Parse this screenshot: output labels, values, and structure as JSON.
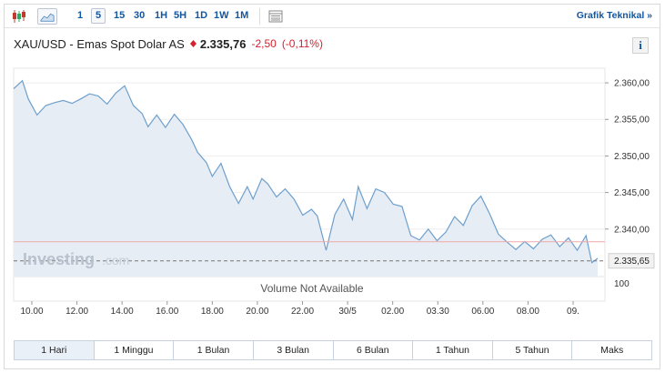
{
  "toolbar": {
    "candle_icon": "candlestick-icon",
    "area_icon": "area-chart-icon",
    "timeframes": [
      "1",
      "5",
      "15",
      "30",
      "1H",
      "5H",
      "1D",
      "1W",
      "1M"
    ],
    "active_timeframe": "5",
    "table_icon": "table-icon",
    "technical_link": "Grafik Teknikal »"
  },
  "header": {
    "instrument": "XAU/USD - Emas Spot Dolar AS",
    "price": "2.335,76",
    "change": "-2,50",
    "change_pct": "(-0,11%)",
    "info_label": "i"
  },
  "colors": {
    "accent": "#1256a0",
    "negative": "#d3212d",
    "area_fill": "#e6edf5",
    "line": "#6e9fcc",
    "ref_line": "#f2a7a7"
  },
  "chart_data": {
    "type": "area",
    "x_ticks": [
      "10.00",
      "12.00",
      "14.00",
      "16.00",
      "18.00",
      "20.00",
      "22.00",
      "30/5",
      "02.00",
      "03.30",
      "06.00",
      "08.00",
      "09."
    ],
    "y_ticks": [
      "2.360,00",
      "2.355,00",
      "2.350,00",
      "2.345,00",
      "2.340,00"
    ],
    "volume_axis_label": "100",
    "ylim": [
      2333.5,
      2362.0
    ],
    "reference_line": 2338.26,
    "last_value_label": "2.335,65",
    "last_value": 2335.65,
    "watermark": "Investing",
    "watermark_suffix": ".com",
    "volume_note": "Volume Not Available",
    "x": [
      0,
      1.5,
      2.5,
      4,
      5.5,
      7,
      8.5,
      10,
      11.5,
      13,
      14.5,
      16,
      17.5,
      19,
      20.5,
      22,
      23,
      24.5,
      26,
      27.5,
      29,
      30.5,
      31.5,
      33,
      34,
      35.5,
      37,
      38.5,
      40,
      41,
      42.5,
      43.5,
      45,
      46.5,
      48,
      49.5,
      51,
      52,
      53.5,
      55,
      56.5,
      58,
      59,
      60.5,
      62,
      63.5,
      65,
      66.5,
      68,
      69.5,
      71,
      72.5,
      74,
      75.5,
      77,
      78.5,
      80,
      81.5,
      83,
      84.5,
      86,
      87.5,
      89,
      90.5,
      92,
      93.5,
      95,
      96.5,
      98,
      99,
      100
    ],
    "y": [
      2359.2,
      2360.3,
      2357.8,
      2355.6,
      2356.9,
      2357.3,
      2357.6,
      2357.2,
      2357.8,
      2358.5,
      2358.2,
      2357.1,
      2358.6,
      2359.6,
      2356.9,
      2355.8,
      2354.0,
      2355.6,
      2353.9,
      2355.7,
      2354.3,
      2352.2,
      2350.5,
      2349.1,
      2347.2,
      2349.0,
      2345.8,
      2343.5,
      2345.8,
      2344.1,
      2346.9,
      2346.2,
      2344.4,
      2345.5,
      2344.1,
      2341.9,
      2342.7,
      2341.8,
      2337.1,
      2342.0,
      2344.1,
      2341.3,
      2345.8,
      2342.8,
      2345.5,
      2345.0,
      2343.4,
      2343.1,
      2339.1,
      2338.5,
      2340.0,
      2338.4,
      2339.6,
      2341.7,
      2340.5,
      2343.2,
      2344.5,
      2342.1,
      2339.3,
      2338.2,
      2337.2,
      2338.3,
      2337.3,
      2338.6,
      2339.2,
      2337.6,
      2338.8,
      2337.1,
      2339.1,
      2335.4,
      2336.0
    ]
  },
  "ranges": [
    "1 Hari",
    "1 Minggu",
    "1 Bulan",
    "3 Bulan",
    "6 Bulan",
    "1 Tahun",
    "5 Tahun",
    "Maks"
  ],
  "active_range": "1 Hari"
}
